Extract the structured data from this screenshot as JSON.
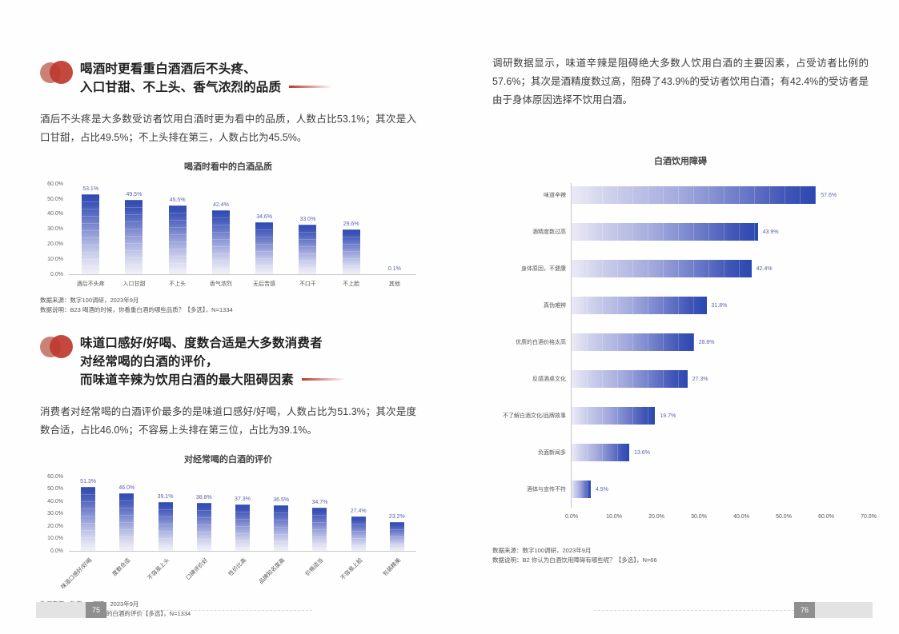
{
  "accent": {
    "bar_dark": "#2e4bb0",
    "bar_light": "#f1f1f9",
    "value_label": "#5c63aa",
    "title_icon_red": "#bf3a2e",
    "title_icon_salmon": "#ca8276",
    "page_number_bg": "#8f8f8f"
  },
  "left_page": {
    "section1": {
      "title_lines": [
        "喝酒时更看重白酒酒后不头疼、",
        "入口甘甜、不上头、香气浓烈的品质"
      ],
      "body": "酒后不头疼是大多数受访者饮用白酒时更为看中的品质，人数占比53.1%；其次是入口甘甜，占比49.5%；不上头排在第三，人数占比为45.5%。",
      "chart_title": "喝酒时看中的白酒品质",
      "source1": "数据来源：数字100调研，2023年9月",
      "source2": "数据说明：B23 喝酒的时候，你看重白酒的哪些品质？【多选】，N=1334"
    },
    "section2": {
      "title_lines": [
        "味道口感好/好喝、度数合适是大多数消费者",
        "对经常喝的白酒的评价，",
        "而味道辛辣为饮用白酒的最大阻碍因素"
      ],
      "body": "消费者对经常喝的白酒评价最多的是味道口感好/好喝，人数占比为51.3%；其次是度数合适，占比46.0%；不容易上头排在第三位，占比为39.1%。",
      "chart_title": "对经常喝的白酒的评价",
      "source1": "数据来源：数字100调研，2023年9月",
      "source2": "数据说明：B24 对经常喝的白酒的评价【多选】，N=1334"
    },
    "page_number": "75"
  },
  "right_page": {
    "body": "调研数据显示，味道辛辣是阻碍绝大多数人饮用白酒的主要因素，占受访者比例的57.6%；其次是酒精度数过高，阻碍了43.9%的受访者饮用白酒；有42.4%的受访者是由于身体原因选择不饮用白酒。",
    "chart_title": "白酒饮用障碍",
    "source1": "数据来源：数字100调研，2023年9月",
    "source2": "数据说明：B2 你认为白酒饮用障碍有哪些呢？【多选】，N=66",
    "page_number": "76"
  },
  "chart_data": [
    {
      "type": "bar",
      "title": "喝酒时看中的白酒品质",
      "categories": [
        "酒后不头疼",
        "入口甘甜",
        "不上头",
        "香气浓烈",
        "无后苦感",
        "不口干",
        "不上脸",
        "其他"
      ],
      "values": [
        53.1,
        49.5,
        45.5,
        42.4,
        34.6,
        33.0,
        29.6,
        0.1
      ],
      "xlabel": "",
      "ylabel": "",
      "ylim": [
        0,
        60
      ],
      "ytick_step": 10,
      "unit": "%",
      "grid": false,
      "legend": "none"
    },
    {
      "type": "bar",
      "title": "对经常喝的白酒的评价",
      "categories": [
        "味道口感好/好喝",
        "度数合适",
        "不容易上头",
        "口碑评价好",
        "性价比高",
        "品牌知名度高",
        "价格适当",
        "不容易上脸",
        "包装精美"
      ],
      "values": [
        51.3,
        46.0,
        39.1,
        38.8,
        37.3,
        36.5,
        34.7,
        27.4,
        23.2
      ],
      "xlabel": "",
      "ylabel": "",
      "ylim": [
        0,
        60
      ],
      "ytick_step": 10,
      "unit": "%",
      "grid": false,
      "legend": "none"
    },
    {
      "type": "bar",
      "orientation": "horizontal",
      "title": "白酒饮用障碍",
      "categories": [
        "味道辛辣",
        "酒精度数过高",
        "身体原因，不健康",
        "真伪难辨",
        "优质的白酒价格太高",
        "反感酒桌文化",
        "不了解白酒文化/品牌故事",
        "负面新闻多",
        "酒体与宣传不符"
      ],
      "values": [
        57.6,
        43.9,
        42.4,
        31.8,
        28.8,
        27.3,
        19.7,
        13.6,
        4.5
      ],
      "xlabel": "",
      "ylabel": "",
      "xlim": [
        0,
        70
      ],
      "xtick_step": 10,
      "unit": "%",
      "grid": false,
      "legend": "none"
    }
  ]
}
